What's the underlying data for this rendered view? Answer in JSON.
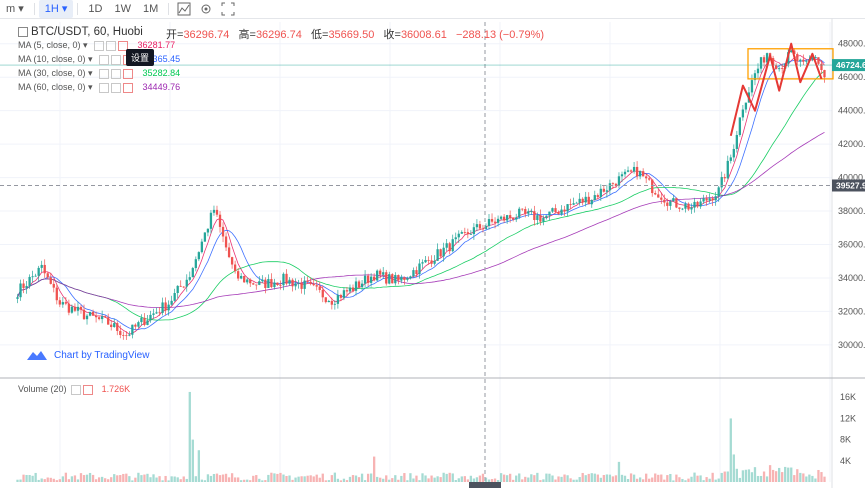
{
  "toolbar": {
    "items": [
      {
        "label": "m",
        "caret": true
      },
      {
        "label": "1H",
        "active": true,
        "caret": true
      },
      {
        "label": "1D"
      },
      {
        "label": "1W"
      },
      {
        "label": "1M"
      }
    ],
    "icons": [
      "indicator-icon",
      "settings-icon",
      "fullscreen-icon"
    ]
  },
  "header": {
    "symbol": "BTC/USDT, 60, Huobi",
    "open_label": "开",
    "open": "36296.74",
    "high_label": "高",
    "high": "36296.74",
    "low_label": "低",
    "low": "35669.50",
    "close_label": "收",
    "close": "36008.61",
    "change": "−288.13 (−0.79%)"
  },
  "indicators": [
    {
      "label": "MA (5, close, 0)",
      "value": "36281.77",
      "color": "#e91e63"
    },
    {
      "label": "MA (10, close, 0)",
      "value": "36365.45",
      "color": "#2962ff"
    },
    {
      "label": "MA (30, close, 0)",
      "value": "35282.84",
      "color": "#00c853"
    },
    {
      "label": "MA (60, close, 0)",
      "value": "34449.76",
      "color": "#9c27b0"
    }
  ],
  "tooltip": "设置",
  "watermark": "Chart by TradingView",
  "volume": {
    "label": "Volume (20)",
    "value": "1.726K"
  },
  "colors": {
    "up": "#26a69a",
    "down": "#ef5350",
    "vol_up": "#a5dbd3",
    "vol_down": "#f7b3b3",
    "highlight_box": "#ffa000",
    "annot": "#e53935"
  },
  "chart_data": {
    "type": "candlestick",
    "price_axis": {
      "ticks": [
        30000,
        32000,
        34000,
        36000,
        38000,
        40000,
        42000,
        44000,
        46000,
        48000
      ],
      "range": [
        28200,
        49300
      ]
    },
    "volume_axis": {
      "ticks": [
        "4K",
        "8K",
        "12K",
        "16K"
      ],
      "range": [
        0,
        18500
      ]
    },
    "current_price_tag": "46724.6",
    "crosshair_price_tag": "39527.9",
    "anchors": [
      [
        0,
        33200
      ],
      [
        8,
        34600
      ],
      [
        14,
        32500
      ],
      [
        22,
        31800
      ],
      [
        30,
        31300
      ],
      [
        36,
        30600
      ],
      [
        42,
        31500
      ],
      [
        50,
        32500
      ],
      [
        57,
        34200
      ],
      [
        65,
        38100
      ],
      [
        72,
        34100
      ],
      [
        80,
        33600
      ],
      [
        88,
        33900
      ],
      [
        96,
        33500
      ],
      [
        104,
        32700
      ],
      [
        110,
        33300
      ],
      [
        118,
        34200
      ],
      [
        126,
        33800
      ],
      [
        134,
        34800
      ],
      [
        142,
        35800
      ],
      [
        150,
        36800
      ],
      [
        158,
        37400
      ],
      [
        166,
        37800
      ],
      [
        174,
        37600
      ],
      [
        182,
        38300
      ],
      [
        190,
        38800
      ],
      [
        198,
        39800
      ],
      [
        205,
        40400
      ],
      [
        210,
        39400
      ],
      [
        216,
        38500
      ],
      [
        224,
        38200
      ],
      [
        232,
        39200
      ],
      [
        236,
        41200
      ],
      [
        240,
        44300
      ],
      [
        244,
        46200
      ],
      [
        248,
        47500
      ],
      [
        252,
        46600
      ],
      [
        256,
        47400
      ],
      [
        260,
        46600
      ],
      [
        264,
        47300
      ],
      [
        267,
        46000
      ]
    ],
    "volume_spikes": {
      "57": 17000,
      "58": 8000,
      "60": 6000,
      "118": 4800,
      "199": 3800,
      "236": 12000,
      "237": 5200
    },
    "annotations": {
      "box_price_range": [
        45900,
        47700
      ],
      "zigzag": [
        [
          236,
          42500
        ],
        [
          240,
          45500
        ],
        [
          244,
          44000
        ],
        [
          249,
          47300
        ],
        [
          252,
          45200
        ],
        [
          256,
          48000
        ],
        [
          259,
          45700
        ],
        [
          263,
          47400
        ],
        [
          266,
          45900
        ]
      ]
    }
  }
}
